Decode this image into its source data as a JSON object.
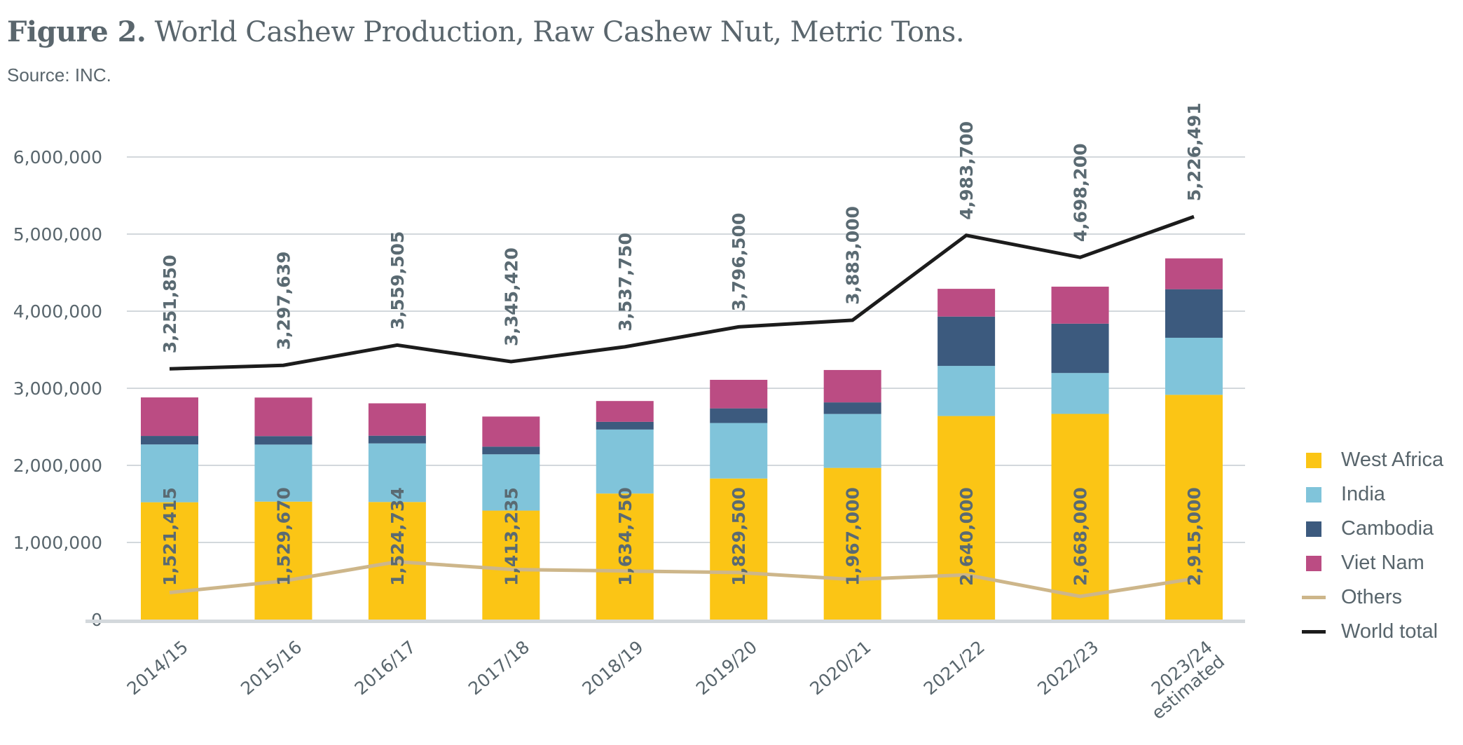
{
  "title": {
    "prefix": "Figure 2.",
    "text": "World Cashew Production, Raw Cashew Nut, Metric Tons."
  },
  "source": "Source: INC.",
  "chart_data": {
    "type": "bar",
    "stacked": true,
    "title": "Figure 2. World Cashew Production, Raw Cashew Nut, Metric Tons.",
    "subtitle": "Source: INC.",
    "xlabel": "",
    "ylabel": "",
    "ylim": [
      0,
      6000000
    ],
    "yticks": [
      0,
      1000000,
      2000000,
      3000000,
      4000000,
      5000000,
      6000000
    ],
    "ytick_labels": [
      "0",
      "1,000,000",
      "2,000,000",
      "3,000,000",
      "4,000,000",
      "5,000,000",
      "6,000,000"
    ],
    "grid": true,
    "legend_position": "right",
    "categories": [
      "2014/15",
      "2015/16",
      "2016/17",
      "2017/18",
      "2018/19",
      "2019/20",
      "2020/21",
      "2021/22",
      "2022/23",
      "2023/24\nestimated"
    ],
    "series": [
      {
        "name": "West Africa",
        "kind": "bar",
        "color": "#fbc515",
        "values": [
          1521415,
          1529670,
          1524734,
          1413235,
          1634750,
          1829500,
          1967000,
          2640000,
          2668000,
          2915000
        ],
        "labels": [
          "1,521,415",
          "1,529,670",
          "1,524,734",
          "1,413,235",
          "1,634,750",
          "1,829,500",
          "1,967,000",
          "2,640,000",
          "2,668,000",
          "2,915,000"
        ]
      },
      {
        "name": "India",
        "kind": "bar",
        "color": "#80c4da",
        "values": [
          750000,
          740000,
          760000,
          730000,
          830000,
          720000,
          700000,
          650000,
          530000,
          740000
        ]
      },
      {
        "name": "Cambodia",
        "kind": "bar",
        "color": "#3c5a7e",
        "values": [
          110000,
          110000,
          100000,
          100000,
          100000,
          190000,
          150000,
          640000,
          640000,
          630000
        ]
      },
      {
        "name": "Viet Nam",
        "kind": "bar",
        "color": "#bb4c83",
        "values": [
          500000,
          500000,
          420000,
          390000,
          270000,
          370000,
          420000,
          360000,
          480000,
          400000
        ]
      },
      {
        "name": "Others",
        "kind": "line",
        "color": "#cdb68a",
        "values": [
          350000,
          500000,
          750000,
          650000,
          630000,
          610000,
          520000,
          580000,
          300000,
          530000
        ]
      },
      {
        "name": "World total",
        "kind": "line",
        "color": "#1c1c1c",
        "values": [
          3251850,
          3297639,
          3559505,
          3345420,
          3537750,
          3796500,
          3883000,
          4983700,
          4698200,
          5226491
        ],
        "labels": [
          "3,251,850",
          "3,297,639",
          "3,559,505",
          "3,345,420",
          "3,537,750",
          "3,796,500",
          "3,883,000",
          "4,983,700",
          "4,698,200",
          "5,226,491"
        ]
      }
    ]
  },
  "legend": [
    {
      "name": "West Africa",
      "marker": "square",
      "color": "#fbc515"
    },
    {
      "name": "India",
      "marker": "square",
      "color": "#80c4da"
    },
    {
      "name": "Cambodia",
      "marker": "square",
      "color": "#3c5a7e"
    },
    {
      "name": "Viet Nam",
      "marker": "square",
      "color": "#bb4c83"
    },
    {
      "name": "Others",
      "marker": "line",
      "color": "#cdb68a"
    },
    {
      "name": "World total",
      "marker": "line",
      "color": "#1c1c1c"
    }
  ]
}
